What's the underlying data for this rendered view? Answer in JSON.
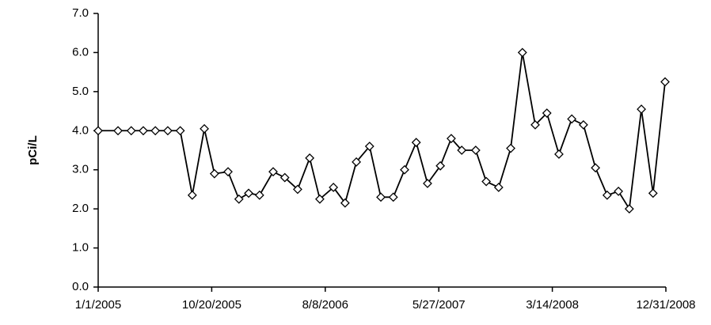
{
  "chart_data": {
    "type": "line",
    "ylabel": "pCi/L",
    "x": [
      "2005-01-01",
      "2005-02-21",
      "2005-03-27",
      "2005-04-27",
      "2005-05-28",
      "2005-06-29",
      "2005-07-31",
      "2005-08-31",
      "2005-10-01",
      "2005-10-27",
      "2005-12-01",
      "2005-12-29",
      "2006-01-23",
      "2006-02-20",
      "2006-03-27",
      "2006-04-26",
      "2006-05-29",
      "2006-06-29",
      "2006-07-25",
      "2006-08-29",
      "2006-09-28",
      "2006-10-27",
      "2006-11-30",
      "2006-12-29",
      "2007-01-30",
      "2007-02-28",
      "2007-03-30",
      "2007-04-28",
      "2007-05-31",
      "2007-06-28",
      "2007-07-25",
      "2007-08-30",
      "2007-09-26",
      "2007-10-28",
      "2007-11-28",
      "2007-12-28",
      "2008-01-30",
      "2008-02-29",
      "2008-03-31",
      "2008-05-03",
      "2008-06-02",
      "2008-07-03",
      "2008-08-02",
      "2008-08-31",
      "2008-09-28",
      "2008-10-29",
      "2008-11-28",
      "2008-12-29"
    ],
    "series": [
      {
        "color": "#000000",
        "values": [
          4.0,
          4.0,
          4.0,
          4.0,
          4.0,
          4.0,
          4.0,
          2.35,
          4.05,
          2.9,
          2.95,
          2.25,
          2.4,
          2.35,
          2.95,
          2.8,
          2.5,
          3.3,
          2.25,
          2.55,
          2.15,
          3.2,
          3.6,
          2.3,
          2.3,
          3.0,
          3.7,
          2.65,
          3.1,
          3.8,
          3.5,
          3.5,
          2.7,
          2.55,
          3.55,
          6.0,
          4.15,
          4.45,
          3.4,
          4.3,
          4.15,
          3.05,
          2.35,
          2.45,
          2.0,
          4.55,
          2.4,
          5.25
        ]
      }
    ],
    "xlim": [
      "2005-01-01",
      "2008-12-31"
    ],
    "xticks": [
      {
        "value": "2005-01-01",
        "label": "1/1/2005"
      },
      {
        "value": "2005-10-20",
        "label": "10/20/2005"
      },
      {
        "value": "2006-08-08",
        "label": "8/8/2006"
      },
      {
        "value": "2007-05-27",
        "label": "5/27/2007"
      },
      {
        "value": "2008-03-14",
        "label": "3/14/2008"
      },
      {
        "value": "2008-12-31",
        "label": "12/31/2008"
      }
    ],
    "ylim": [
      0,
      7
    ],
    "yticks": [
      {
        "value": 0,
        "label": "0.0"
      },
      {
        "value": 1,
        "label": "1.0"
      },
      {
        "value": 2,
        "label": "2.0"
      },
      {
        "value": 3,
        "label": "3.0"
      },
      {
        "value": 4,
        "label": "4.0"
      },
      {
        "value": 5,
        "label": "5.0"
      },
      {
        "value": 6,
        "label": "6.0"
      },
      {
        "value": 7,
        "label": "7.0"
      }
    ],
    "grid": false
  }
}
